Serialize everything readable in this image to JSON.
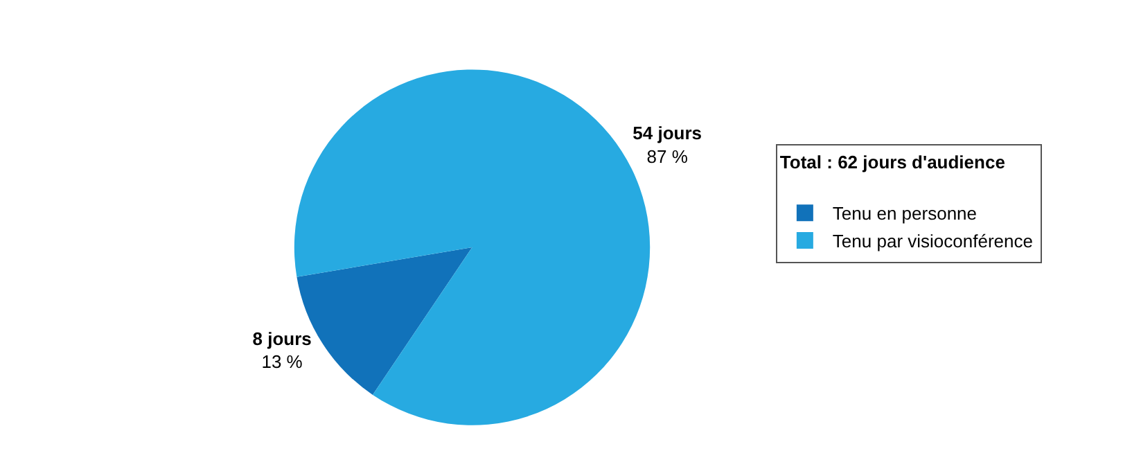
{
  "chart_data": {
    "type": "pie",
    "legend_title": "Total : 62 jours d'audience",
    "categories": [
      "Tenu en personne",
      "Tenu par visioconférence"
    ],
    "values": [
      8,
      54
    ],
    "colors": [
      "#1172ba",
      "#27aae1"
    ],
    "value_labels": [
      "8 jours\n13 %",
      "54 jours\n87 %"
    ],
    "legend": "right"
  }
}
